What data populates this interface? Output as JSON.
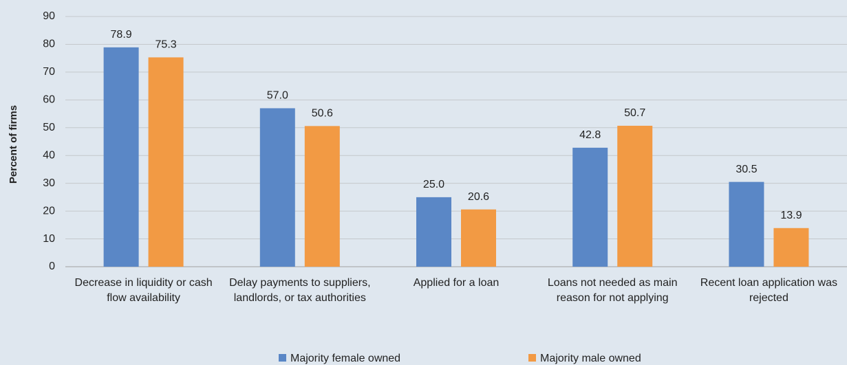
{
  "chart_data": {
    "type": "bar",
    "y_label": "Percent of firms",
    "categories": [
      "Decrease in liquidity or cash flow availability",
      "Delay payments to suppliers, landlords, or tax authorities",
      "Applied for a loan",
      "Loans not needed as main reason for not applying",
      "Recent loan application was rejected"
    ],
    "series": [
      {
        "name": "Majority female owned",
        "color": "#5a87c6",
        "values": [
          78.9,
          57.0,
          25.0,
          42.8,
          30.5
        ],
        "value_labels": [
          "78.9",
          "57.0",
          "25.0",
          "42.8",
          "30.5"
        ]
      },
      {
        "name": "Majority male owned",
        "color": "#f29a44",
        "values": [
          75.3,
          50.6,
          20.6,
          50.7,
          13.9
        ],
        "value_labels": [
          "75.3",
          "50.6",
          "20.6",
          "50.7",
          "13.9"
        ]
      }
    ],
    "ylim": [
      0,
      90
    ],
    "yticks": [
      0,
      10,
      20,
      30,
      40,
      50,
      60,
      70,
      80,
      90
    ],
    "grid": true,
    "legend": "bottom"
  }
}
